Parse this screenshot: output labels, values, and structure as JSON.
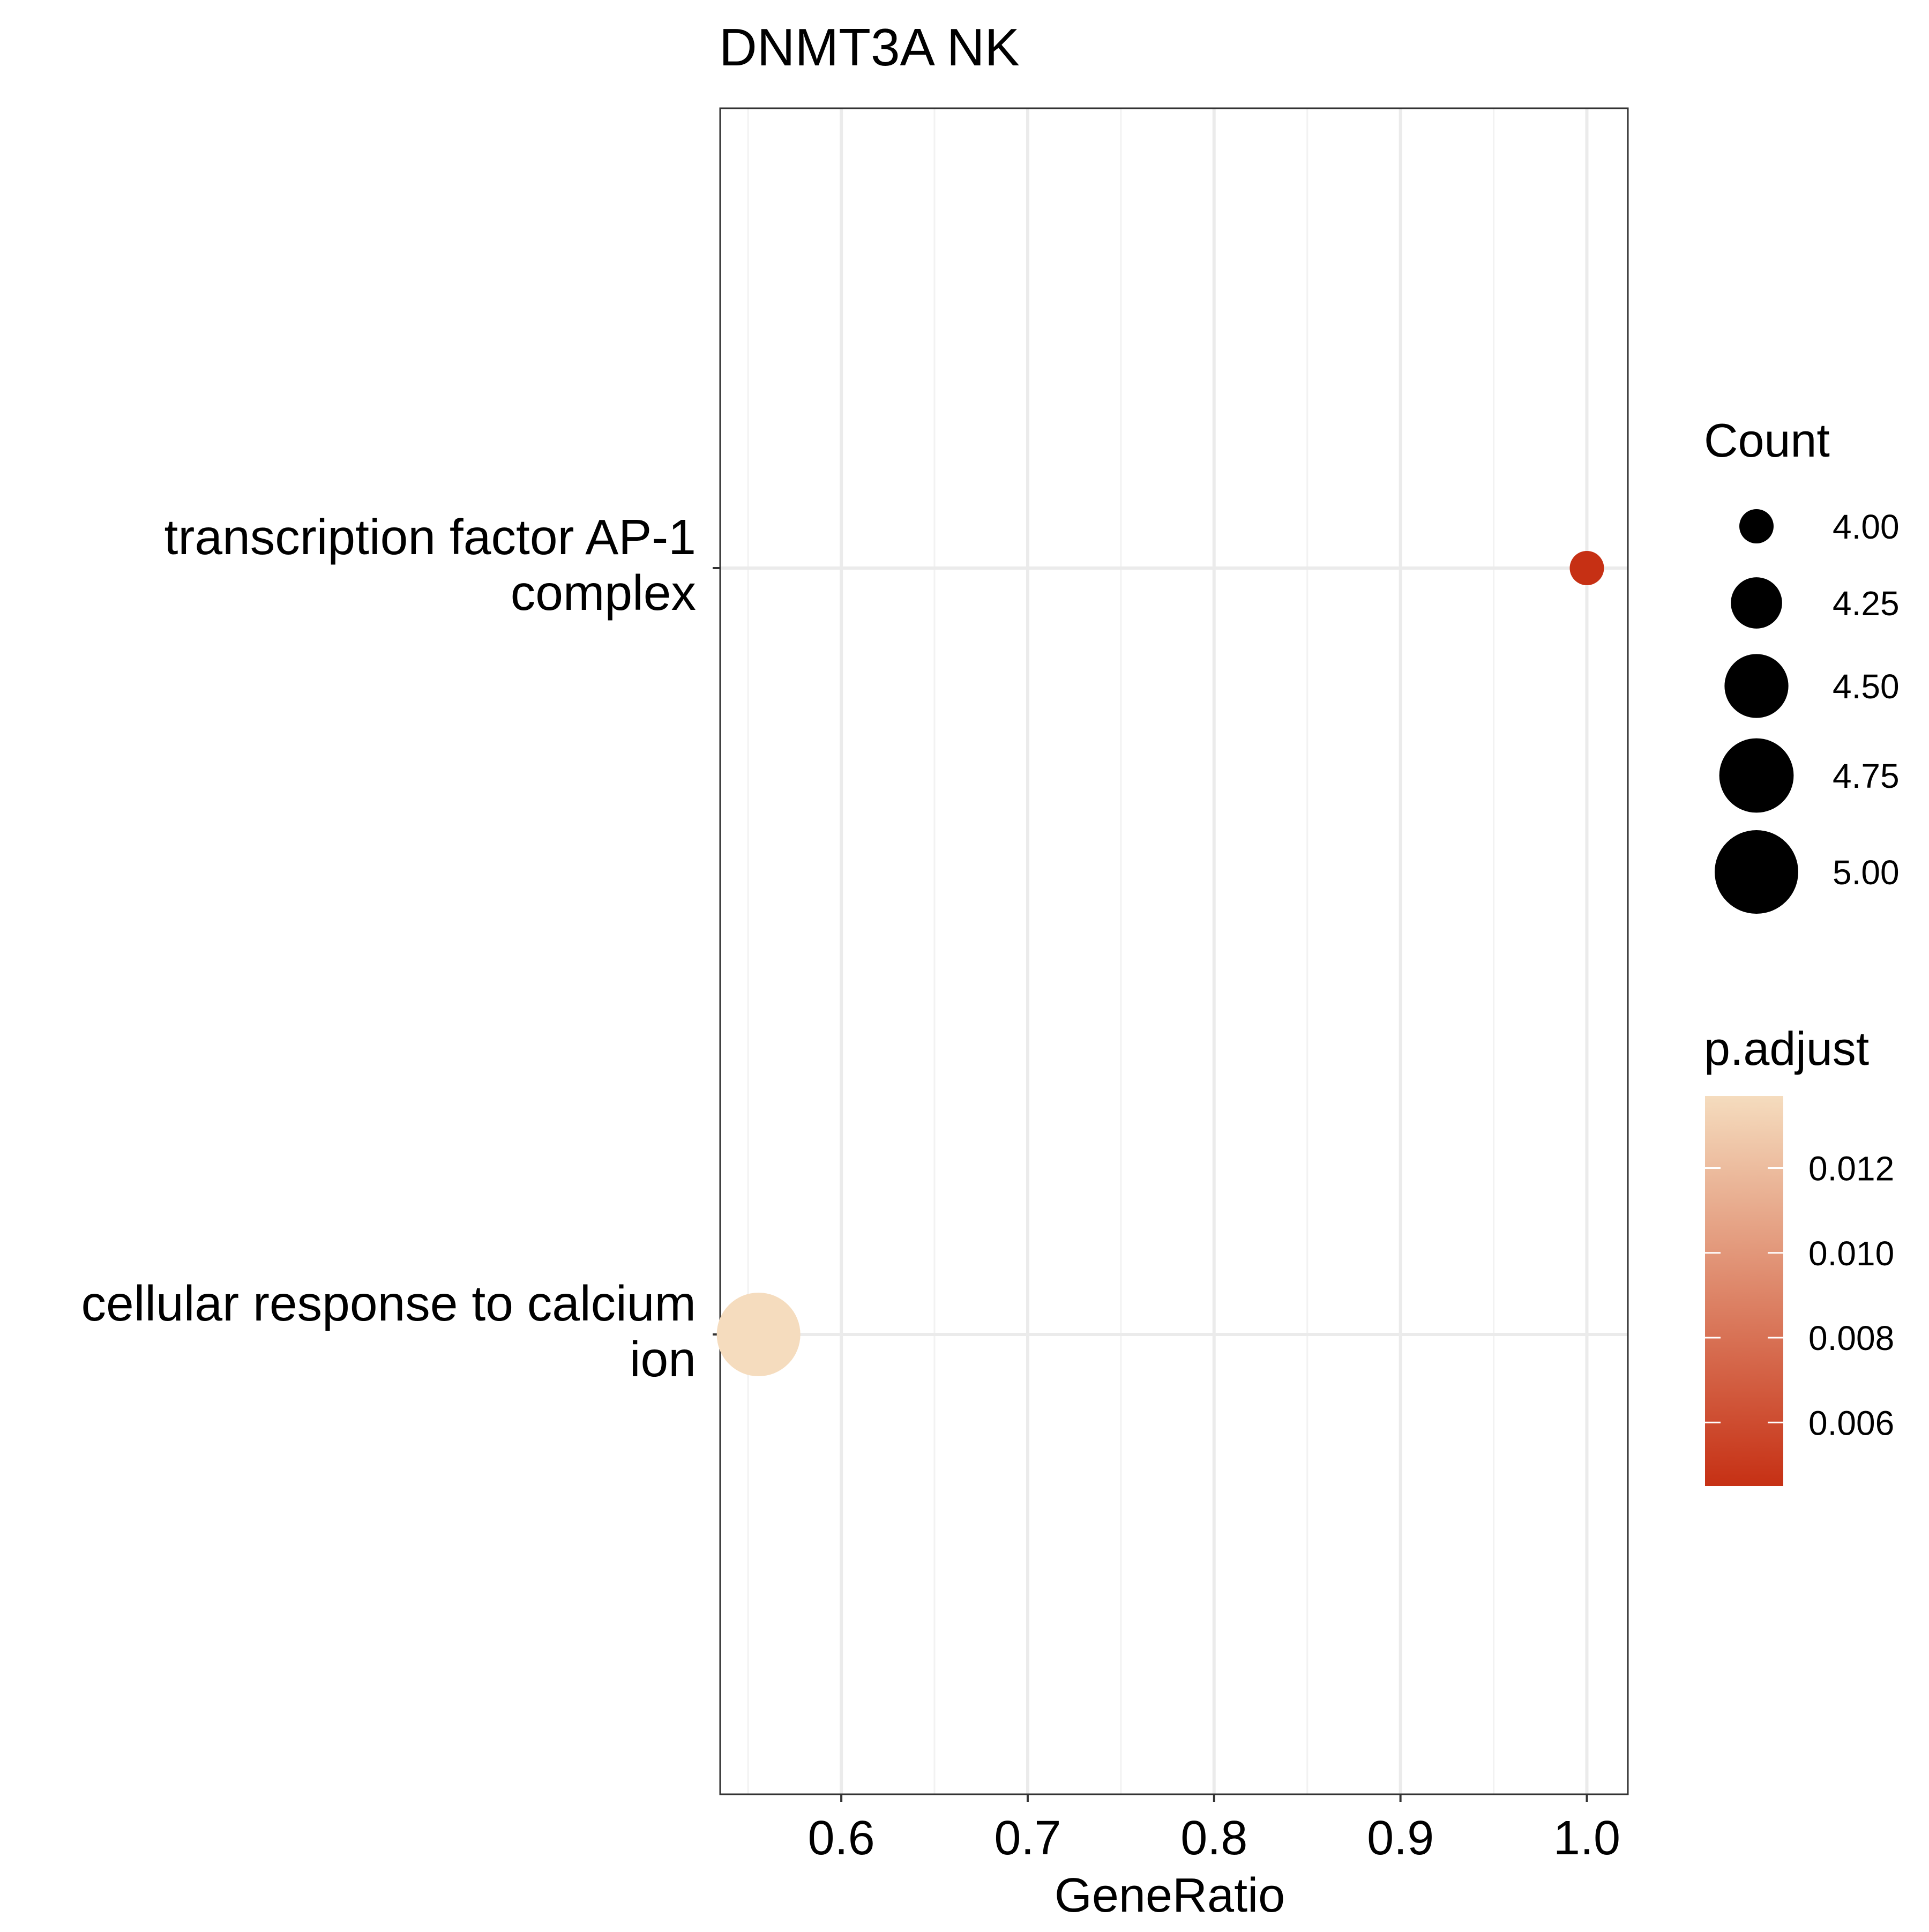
{
  "chart_data": {
    "type": "scatter",
    "title": "DNMT3A NK",
    "xlabel": "GeneRatio",
    "ylabel": "",
    "xlim": [
      0.535,
      1.022
    ],
    "x_ticks": [
      "0.6",
      "0.7",
      "0.8",
      "0.9",
      "1.0"
    ],
    "x_tick_values": [
      0.6,
      0.7,
      0.8,
      0.9,
      1.0
    ],
    "grid": true,
    "categories": [
      [
        "transcription factor AP-1",
        "complex"
      ],
      [
        "cellular response to calcium",
        "ion"
      ]
    ],
    "points": [
      {
        "term_index": 0,
        "x": 1.0,
        "count": 4,
        "p_adjust": 0.0045
      },
      {
        "term_index": 1,
        "x": 0.5556,
        "count": 5,
        "p_adjust": 0.0137
      }
    ],
    "legend_position": "right",
    "size_legend": {
      "title": "Count",
      "labels": [
        "4.00",
        "4.25",
        "4.50",
        "4.75",
        "5.00"
      ],
      "values": [
        4.0,
        4.25,
        4.5,
        4.75,
        5.0
      ],
      "color": "#000000"
    },
    "color_legend": {
      "title": "p.adjust",
      "labels": [
        "0.012",
        "0.010",
        "0.008",
        "0.006"
      ],
      "values": [
        0.012,
        0.01,
        0.008,
        0.006
      ],
      "range": [
        0.0045,
        0.0137
      ],
      "low_color": "#C63014",
      "high_color": "#F5DCBE"
    },
    "colors": {
      "panel_border": "#333333",
      "grid_major": "#EBEBEB",
      "grid_minor": "#F2F2F2"
    }
  }
}
